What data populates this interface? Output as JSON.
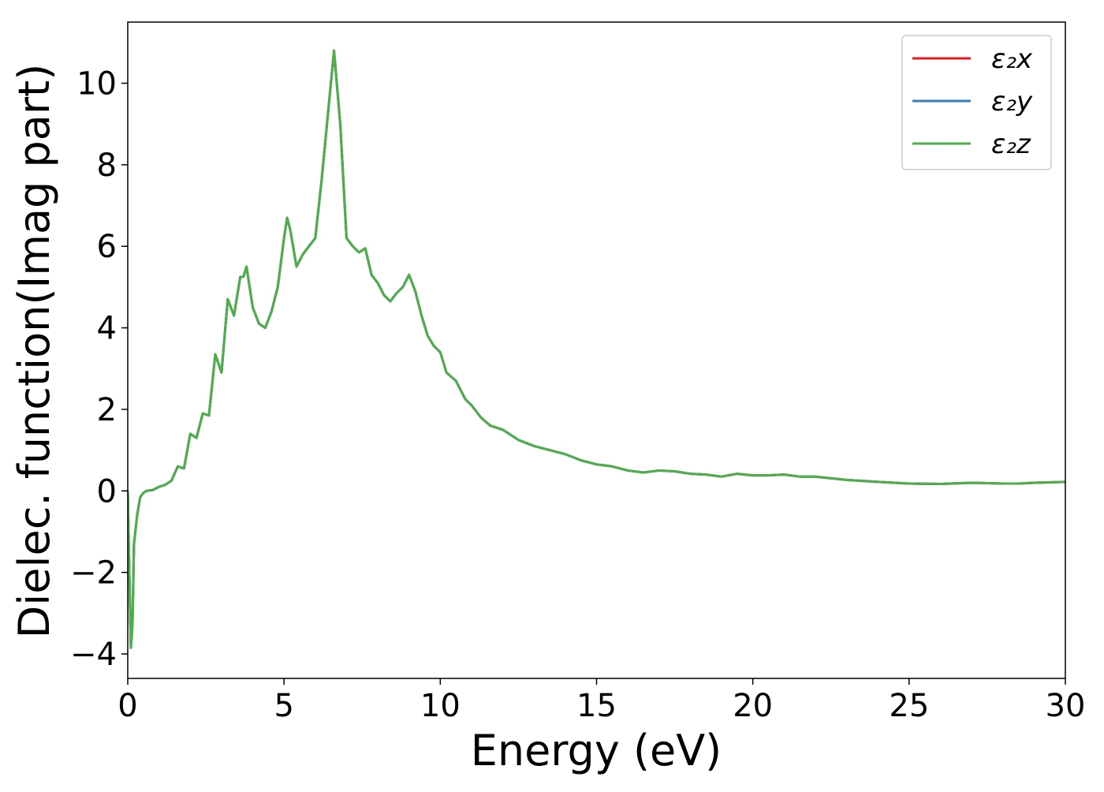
{
  "chart_data": {
    "type": "line",
    "xlabel": "Energy (eV)",
    "ylabel": "Dielec. function(Imag part)",
    "x": [
      0,
      0.05,
      0.1,
      0.15,
      0.2,
      0.3,
      0.4,
      0.5,
      0.6,
      0.8,
      1.0,
      1.2,
      1.4,
      1.6,
      1.8,
      2.0,
      2.2,
      2.4,
      2.6,
      2.8,
      3.0,
      3.2,
      3.4,
      3.6,
      3.7,
      3.8,
      4.0,
      4.2,
      4.4,
      4.6,
      4.8,
      5.0,
      5.1,
      5.2,
      5.4,
      5.6,
      5.8,
      6.0,
      6.2,
      6.4,
      6.6,
      6.8,
      7.0,
      7.2,
      7.4,
      7.6,
      7.8,
      8.0,
      8.2,
      8.4,
      8.6,
      8.8,
      9.0,
      9.2,
      9.4,
      9.6,
      9.8,
      10.0,
      10.2,
      10.5,
      10.8,
      11.0,
      11.3,
      11.6,
      12.0,
      12.5,
      13.0,
      13.5,
      14.0,
      14.5,
      15.0,
      15.5,
      16.0,
      16.5,
      17.0,
      17.5,
      18.0,
      18.5,
      19.0,
      19.5,
      20.0,
      20.5,
      21.0,
      21.5,
      22.0,
      23.0,
      24.0,
      25.0,
      26.0,
      27.0,
      28.0,
      28.5,
      29.0,
      30.0
    ],
    "series": [
      {
        "name": "ε₂x",
        "color": "#e41a1c",
        "values": [
          0,
          -2,
          -3.85,
          -3.3,
          -1.3,
          -0.6,
          -0.15,
          -0.05,
          0,
          0.02,
          0.1,
          0.15,
          0.25,
          0.6,
          0.55,
          1.4,
          1.3,
          1.9,
          1.85,
          3.35,
          2.9,
          4.7,
          4.3,
          5.25,
          5.25,
          5.5,
          4.5,
          4.1,
          4.0,
          4.4,
          5.0,
          6.2,
          6.7,
          6.4,
          5.5,
          5.8,
          6.0,
          6.2,
          7.6,
          9.2,
          10.8,
          9.0,
          6.2,
          6.0,
          5.85,
          5.95,
          5.3,
          5.1,
          4.8,
          4.65,
          4.85,
          5.0,
          5.3,
          4.9,
          4.3,
          3.8,
          3.55,
          3.4,
          2.9,
          2.7,
          2.25,
          2.1,
          1.8,
          1.6,
          1.5,
          1.25,
          1.1,
          1.0,
          0.9,
          0.75,
          0.65,
          0.6,
          0.5,
          0.45,
          0.5,
          0.48,
          0.42,
          0.4,
          0.35,
          0.42,
          0.38,
          0.38,
          0.4,
          0.35,
          0.35,
          0.27,
          0.22,
          0.18,
          0.17,
          0.2,
          0.18,
          0.18,
          0.2,
          0.22
        ]
      },
      {
        "name": "ε₂y",
        "color": "#377eb8",
        "values": [
          0,
          -2,
          -3.85,
          -3.3,
          -1.3,
          -0.6,
          -0.15,
          -0.05,
          0,
          0.02,
          0.1,
          0.15,
          0.25,
          0.6,
          0.55,
          1.4,
          1.3,
          1.9,
          1.85,
          3.35,
          2.9,
          4.7,
          4.3,
          5.25,
          5.25,
          5.5,
          4.5,
          4.1,
          4.0,
          4.4,
          5.0,
          6.2,
          6.7,
          6.4,
          5.5,
          5.8,
          6.0,
          6.2,
          7.6,
          9.2,
          10.8,
          9.0,
          6.2,
          6.0,
          5.85,
          5.95,
          5.3,
          5.1,
          4.8,
          4.65,
          4.85,
          5.0,
          5.3,
          4.9,
          4.3,
          3.8,
          3.55,
          3.4,
          2.9,
          2.7,
          2.25,
          2.1,
          1.8,
          1.6,
          1.5,
          1.25,
          1.1,
          1.0,
          0.9,
          0.75,
          0.65,
          0.6,
          0.5,
          0.45,
          0.5,
          0.48,
          0.42,
          0.4,
          0.35,
          0.42,
          0.38,
          0.38,
          0.4,
          0.35,
          0.35,
          0.27,
          0.22,
          0.18,
          0.17,
          0.2,
          0.18,
          0.18,
          0.2,
          0.22
        ]
      },
      {
        "name": "ε₂z",
        "color": "#4daf4a",
        "values": [
          0,
          -2,
          -3.85,
          -3.3,
          -1.3,
          -0.6,
          -0.15,
          -0.05,
          0,
          0.02,
          0.1,
          0.15,
          0.25,
          0.6,
          0.55,
          1.4,
          1.3,
          1.9,
          1.85,
          3.35,
          2.9,
          4.7,
          4.3,
          5.25,
          5.25,
          5.5,
          4.5,
          4.1,
          4.0,
          4.4,
          5.0,
          6.2,
          6.7,
          6.4,
          5.5,
          5.8,
          6.0,
          6.2,
          7.6,
          9.2,
          10.8,
          9.0,
          6.2,
          6.0,
          5.85,
          5.95,
          5.3,
          5.1,
          4.8,
          4.65,
          4.85,
          5.0,
          5.3,
          4.9,
          4.3,
          3.8,
          3.55,
          3.4,
          2.9,
          2.7,
          2.25,
          2.1,
          1.8,
          1.6,
          1.5,
          1.25,
          1.1,
          1.0,
          0.9,
          0.75,
          0.65,
          0.6,
          0.5,
          0.45,
          0.5,
          0.48,
          0.42,
          0.4,
          0.35,
          0.42,
          0.38,
          0.38,
          0.4,
          0.35,
          0.35,
          0.27,
          0.22,
          0.18,
          0.17,
          0.2,
          0.18,
          0.18,
          0.2,
          0.22
        ]
      }
    ],
    "xlim": [
      0,
      30
    ],
    "xticks": [
      0,
      5,
      10,
      15,
      20,
      25,
      30
    ],
    "ylim": [
      -4.6,
      11.5
    ],
    "yticks": [
      {
        "value": -4,
        "label": "−4"
      },
      {
        "value": -2,
        "label": "−2"
      },
      0,
      2,
      4,
      6,
      8,
      10
    ],
    "grid": false,
    "legend": "upper right"
  }
}
